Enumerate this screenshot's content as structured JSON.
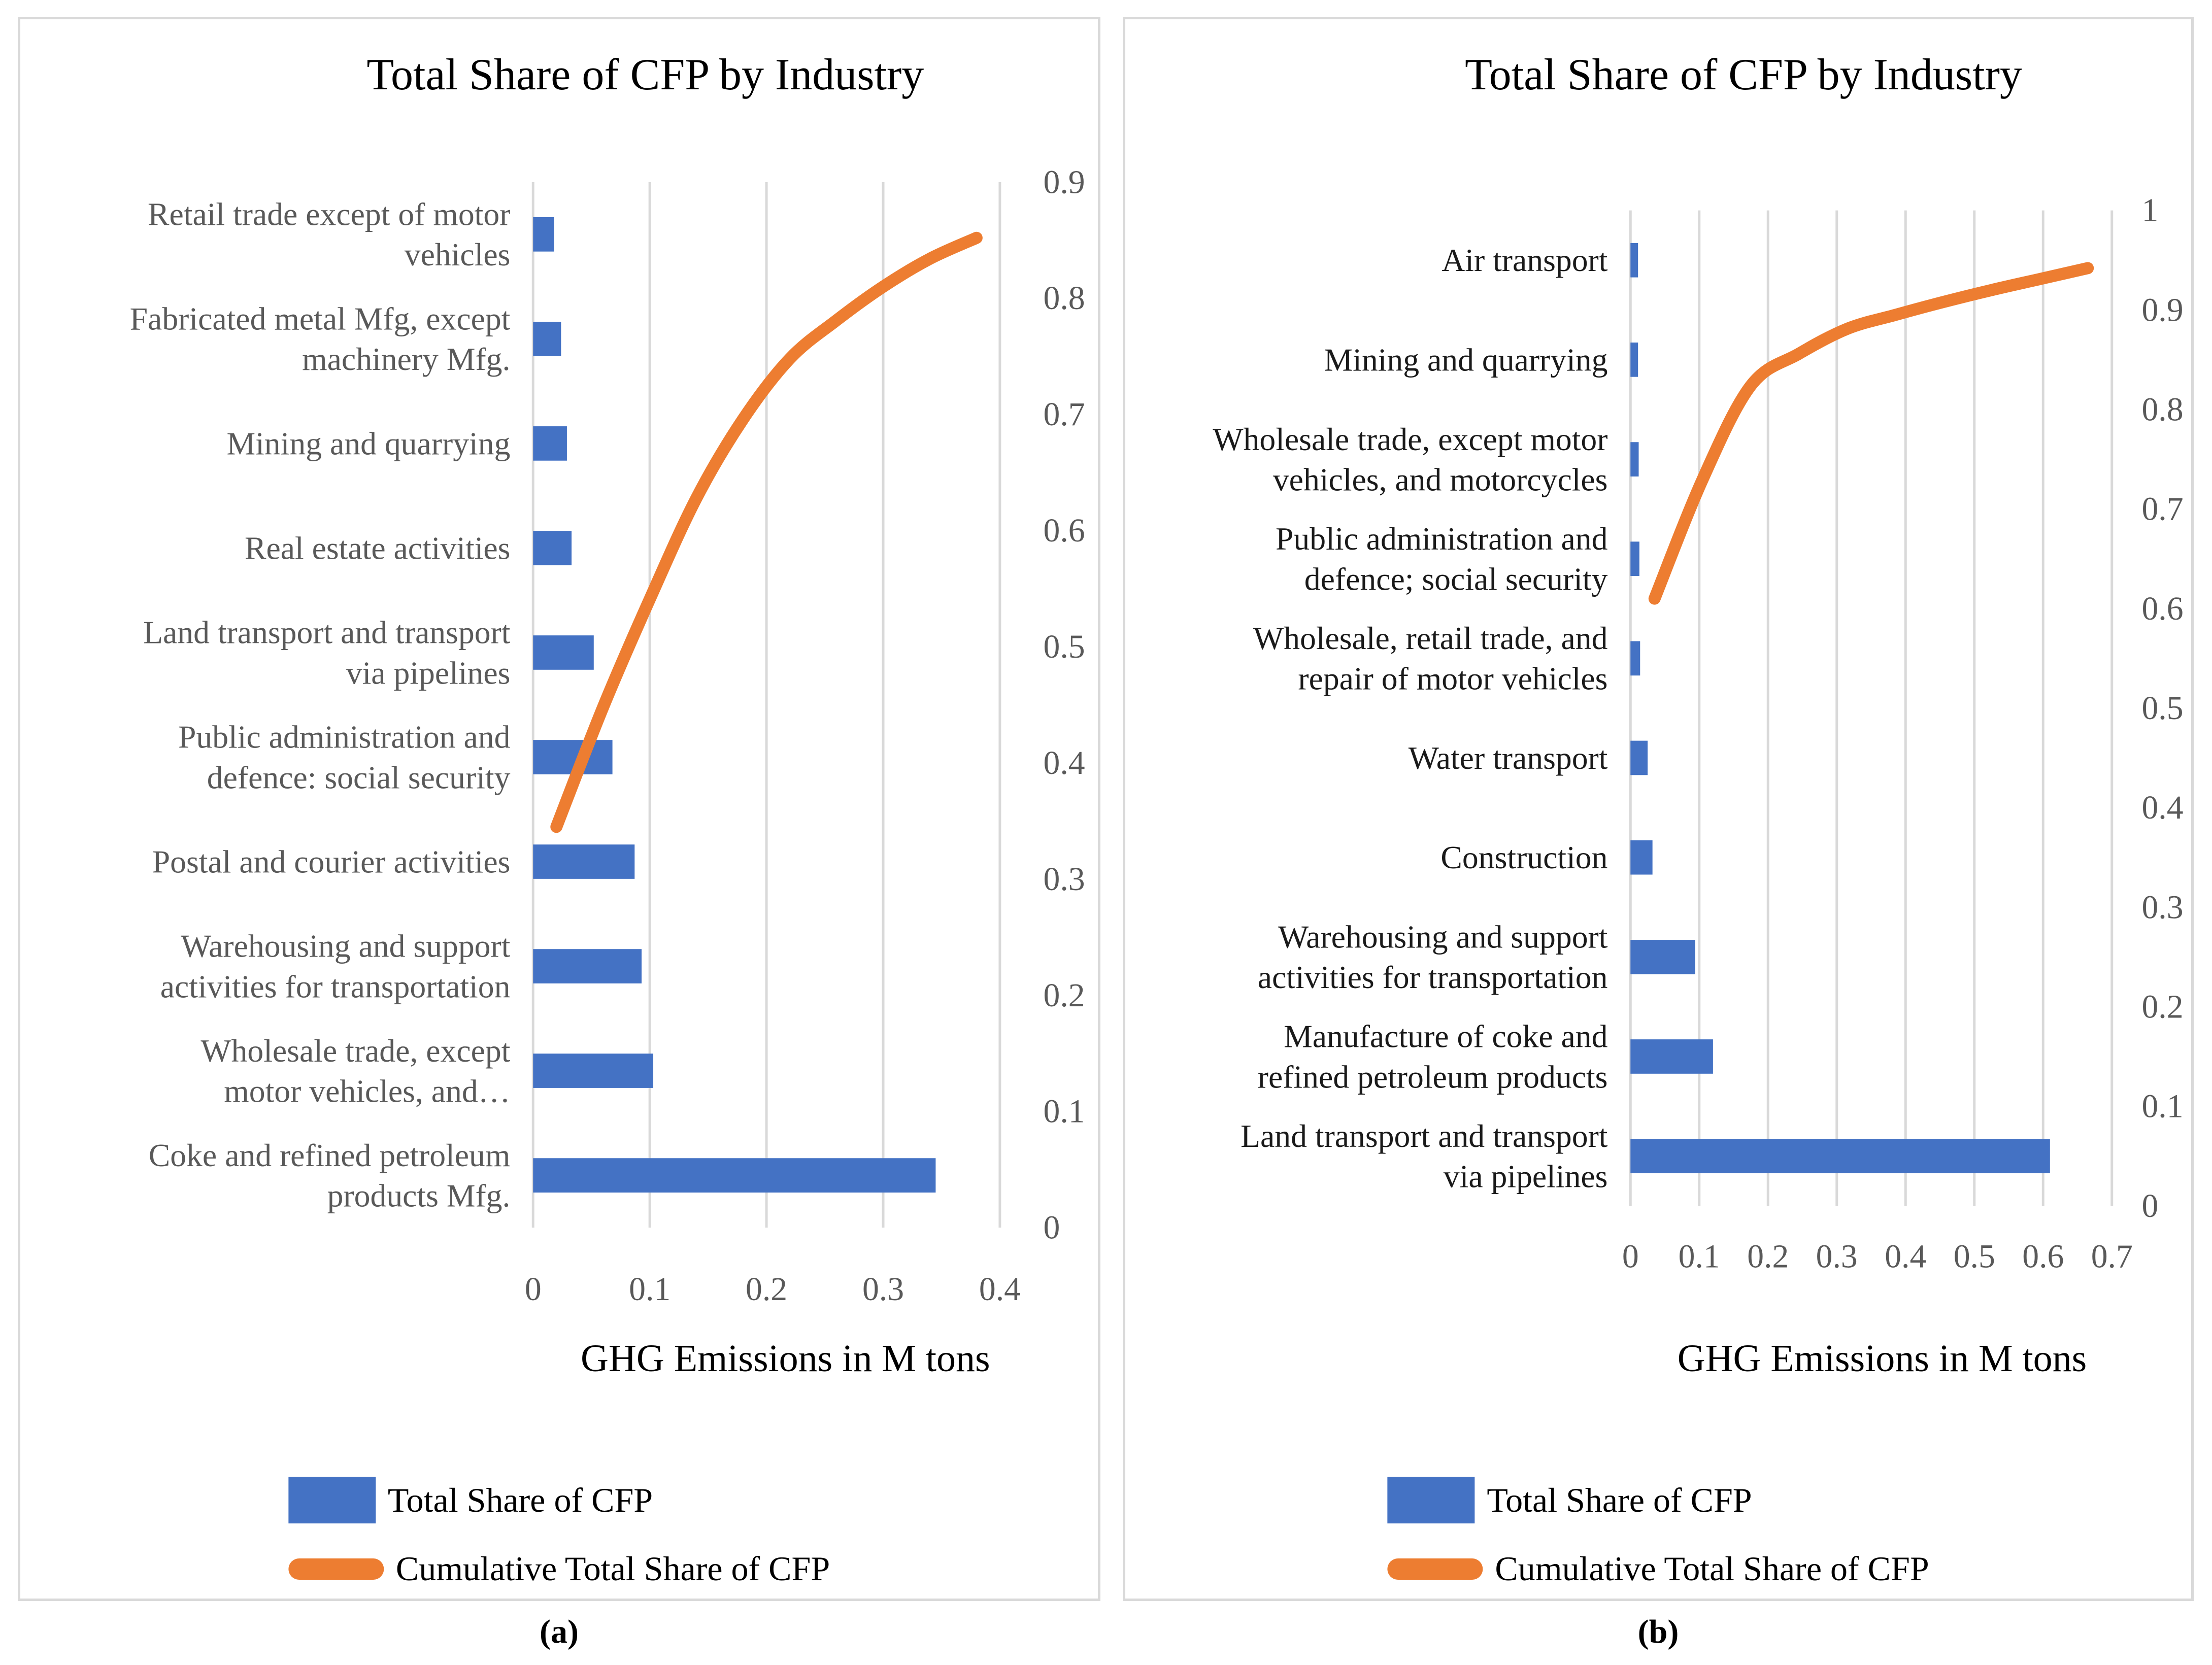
{
  "colors": {
    "bar_blue": "#4472C4",
    "line_orange": "#ED7D31",
    "gridline": "#D9D9D9",
    "tick_text": "#595959",
    "panel_border": "#D9D9D9"
  },
  "chart_data": [
    {
      "type": "bar",
      "subtype": "pareto-horizontal-bars-with-cumulative-line",
      "title": "Total Share of CFP by Industry",
      "xlabel": "GHG Emissions in M tons",
      "caption": "(a)",
      "label_color": "#595959",
      "tick_color": "#595959",
      "categories": [
        "Retail trade except of motor\nvehicles",
        "Fabricated metal Mfg, except\nmachinery Mfg.",
        "Mining and quarrying",
        "Real estate activities",
        "Land transport and transport\nvia pipelines",
        "Public administration and\ndefence: social security",
        "Postal and courier activities",
        "Warehousing and support\nactivities for transportation",
        "Wholesale trade, except\nmotor vehicles, and…",
        "Coke and refined petroleum\nproducts Mfg."
      ],
      "series": [
        {
          "name": "Total Share of CFP",
          "type": "bar",
          "color": "#4472C4",
          "values": [
            0.018,
            0.024,
            0.029,
            0.033,
            0.052,
            0.068,
            0.087,
            0.093,
            0.103,
            0.345
          ]
        },
        {
          "name": "Cumulative Total Share of CFP",
          "type": "line",
          "color": "#ED7D31",
          "values": [
            0.852,
            0.834,
            0.81,
            0.781,
            0.748,
            0.696,
            0.628,
            0.541,
            0.448,
            0.345
          ]
        }
      ],
      "x_axis": {
        "ticks": [
          "0",
          "0.1",
          "0.2",
          "0.3",
          "0.4"
        ],
        "min": 0,
        "max": 0.4,
        "grid": true
      },
      "secondary_axis": {
        "ticks": [
          "0.9",
          "0.8",
          "0.7",
          "0.6",
          "0.5",
          "0.4",
          "0.3",
          "0.2",
          "0.1",
          "0"
        ],
        "min": 0,
        "max": 0.9
      },
      "legend_position": "bottom"
    },
    {
      "type": "bar",
      "subtype": "pareto-horizontal-bars-with-cumulative-line",
      "title": "Total Share of CFP by Industry",
      "xlabel": "GHG Emissions in M tons",
      "caption": "(b)",
      "label_color": "#1a1a1a",
      "tick_color": "#595959",
      "categories": [
        "Air transport",
        "Mining and quarrying",
        "Wholesale trade, except motor\nvehicles, and motorcycles",
        "Public administration and\ndefence; social security",
        "Wholesale, retail trade, and\nrepair of motor vehicles",
        "Water transport",
        "Construction",
        "Warehousing and support\nactivities for transportation",
        "Manufacture of coke and\nrefined petroleum products",
        "Land transport and transport\nvia pipelines"
      ],
      "series": [
        {
          "name": "Total Share of CFP",
          "type": "bar",
          "color": "#4472C4",
          "values": [
            0.011,
            0.011,
            0.012,
            0.013,
            0.014,
            0.025,
            0.032,
            0.094,
            0.12,
            0.61
          ]
        },
        {
          "name": "Cumulative Total Share of CFP",
          "type": "line",
          "color": "#ED7D31",
          "values": [
            0.942,
            0.931,
            0.92,
            0.908,
            0.895,
            0.881,
            0.856,
            0.824,
            0.73,
            0.61
          ]
        }
      ],
      "x_axis": {
        "ticks": [
          "0",
          "0.1",
          "0.2",
          "0.3",
          "0.4",
          "0.5",
          "0.6",
          "0.7"
        ],
        "min": 0,
        "max": 0.7,
        "grid": true
      },
      "secondary_axis": {
        "ticks": [
          "1",
          "0.9",
          "0.8",
          "0.7",
          "0.6",
          "0.5",
          "0.4",
          "0.3",
          "0.2",
          "0.1",
          "0"
        ],
        "min": 0,
        "max": 1
      },
      "legend_position": "bottom"
    }
  ]
}
